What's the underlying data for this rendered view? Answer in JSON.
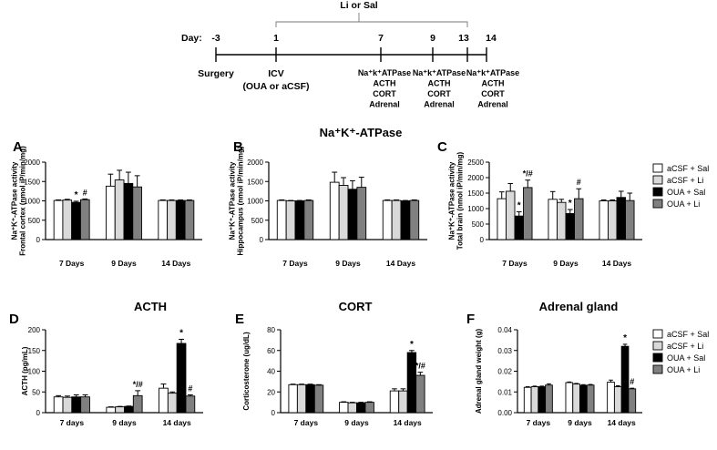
{
  "timeline": {
    "day_label": "Day:",
    "bracket_label": "Li or Sal",
    "days": [
      {
        "day": -3,
        "label": "-3",
        "below": [
          "Surgery"
        ]
      },
      {
        "day": 1,
        "label": "1",
        "below": [
          "ICV",
          "(OUA or aCSF)"
        ]
      },
      {
        "day": 7,
        "label": "7",
        "below": [
          "Na⁺k⁺ATPase",
          "ACTH",
          "CORT",
          "Adrenal"
        ]
      },
      {
        "day": 9,
        "label": "9",
        "below": [
          "Na⁺k⁺ATPase",
          "ACTH",
          "CORT",
          "Adrenal"
        ]
      },
      {
        "day": 13,
        "label": "13",
        "below": []
      },
      {
        "day": 14,
        "label": "14",
        "below": [
          "Na⁺k⁺ATPase",
          "ACTH",
          "CORT",
          "Adrenal"
        ]
      }
    ]
  },
  "section_titles": {
    "top": "Na⁺K⁺-ATPase"
  },
  "legends": [
    {
      "entries": [
        "aCSF + Sal",
        "aCSF + Li",
        "OUA + Sal",
        "OUA + Li"
      ]
    },
    {
      "entries": [
        "aCSF + Sal",
        "aCSF + Li",
        "OUA + Sal",
        "OUA + Li"
      ]
    }
  ],
  "colors": {
    "aCSF + Sal": "#ffffff",
    "aCSF + Li": "#d9d9d9",
    "OUA + Sal": "#000000",
    "OUA + Li": "#808080"
  },
  "chart_data": [
    {
      "id": "A",
      "letter": "A",
      "type": "bar",
      "title": "",
      "ylabel": "Na⁺K⁺-ATPase activity\nFrontal cortex (nmol iP/min/mg)",
      "ylim": [
        0,
        2000
      ],
      "yticks": [
        0,
        500,
        1000,
        1500,
        2000
      ],
      "categories": [
        "7 Days",
        "9 Days",
        "14 Days"
      ],
      "series": [
        {
          "name": "aCSF + Sal",
          "values": [
            1010,
            1380,
            1010
          ],
          "errors": [
            15,
            310,
            15
          ]
        },
        {
          "name": "aCSF + Li",
          "values": [
            1020,
            1540,
            1010
          ],
          "errors": [
            20,
            250,
            15
          ]
        },
        {
          "name": "OUA + Sal",
          "values": [
            960,
            1450,
            1010
          ],
          "errors": [
            30,
            290,
            15
          ]
        },
        {
          "name": "OUA + Li",
          "values": [
            1030,
            1360,
            1010
          ],
          "errors": [
            20,
            290,
            15
          ]
        }
      ],
      "annotations": [
        {
          "category": 0,
          "series": 2,
          "text": "*"
        },
        {
          "category": 0,
          "series": 3,
          "text": "#"
        }
      ]
    },
    {
      "id": "B",
      "letter": "B",
      "type": "bar",
      "title": "",
      "ylabel": "Na⁺K⁺-ATPase activity\nHippocampus (nmol iP/min/mg)",
      "ylim": [
        0,
        2000
      ],
      "yticks": [
        0,
        500,
        1000,
        1500,
        2000
      ],
      "categories": [
        "7 Days",
        "9 Days",
        "14 Days"
      ],
      "series": [
        {
          "name": "aCSF + Sal",
          "values": [
            1010,
            1480,
            1010
          ],
          "errors": [
            15,
            260,
            15
          ]
        },
        {
          "name": "aCSF + Li",
          "values": [
            1000,
            1400,
            1010
          ],
          "errors": [
            10,
            200,
            15
          ]
        },
        {
          "name": "OUA + Sal",
          "values": [
            1000,
            1300,
            1000
          ],
          "errors": [
            10,
            220,
            10
          ]
        },
        {
          "name": "OUA + Li",
          "values": [
            1010,
            1350,
            1010
          ],
          "errors": [
            15,
            260,
            15
          ]
        }
      ],
      "annotations": []
    },
    {
      "id": "C",
      "letter": "C",
      "type": "bar",
      "title": "",
      "ylabel": "Na⁺K⁺-ATPase activity\nTotal brain (nmol iP/min/mg)",
      "ylim": [
        0,
        2500
      ],
      "yticks": [
        0,
        500,
        1000,
        1500,
        2000,
        2500
      ],
      "categories": [
        "7 Days",
        "9 Days",
        "14 Days"
      ],
      "series": [
        {
          "name": "aCSF + Sal",
          "values": [
            1320,
            1300,
            1250
          ],
          "errors": [
            220,
            250,
            30
          ]
        },
        {
          "name": "aCSF + Li",
          "values": [
            1560,
            1200,
            1250
          ],
          "errors": [
            250,
            100,
            30
          ]
        },
        {
          "name": "OUA + Sal",
          "values": [
            760,
            840,
            1360
          ],
          "errors": [
            140,
            130,
            200
          ]
        },
        {
          "name": "OUA + Li",
          "values": [
            1680,
            1320,
            1260
          ],
          "errors": [
            240,
            320,
            240
          ]
        }
      ],
      "annotations": [
        {
          "category": 0,
          "series": 2,
          "text": "*"
        },
        {
          "category": 0,
          "series": 3,
          "text": "*/#"
        },
        {
          "category": 1,
          "series": 2,
          "text": "*"
        },
        {
          "category": 1,
          "series": 3,
          "text": "#"
        }
      ]
    },
    {
      "id": "D",
      "letter": "D",
      "type": "bar",
      "title": "ACTH",
      "ylabel": "ACTH (pg/mL)",
      "ylim": [
        0,
        200
      ],
      "yticks": [
        0,
        50,
        100,
        150,
        200
      ],
      "categories": [
        "7 days",
        "9 days",
        "14 days"
      ],
      "series": [
        {
          "name": "aCSF + Sal",
          "values": [
            38,
            13,
            59
          ],
          "errors": [
            3,
            1,
            10
          ]
        },
        {
          "name": "aCSF + Li",
          "values": [
            37,
            14,
            47
          ],
          "errors": [
            3,
            1,
            3
          ]
        },
        {
          "name": "OUA + Sal",
          "values": [
            38,
            15,
            167
          ],
          "errors": [
            5,
            1,
            10
          ]
        },
        {
          "name": "OUA + Li",
          "values": [
            38,
            41,
            40
          ],
          "errors": [
            5,
            12,
            3
          ]
        }
      ],
      "annotations": [
        {
          "category": 1,
          "series": 3,
          "text": "*/#"
        },
        {
          "category": 2,
          "series": 2,
          "text": "*"
        },
        {
          "category": 2,
          "series": 3,
          "text": "#"
        }
      ]
    },
    {
      "id": "E",
      "letter": "E",
      "type": "bar",
      "title": "CORT",
      "ylabel": "Corticosterone (ug/dL)",
      "ylim": [
        0,
        80
      ],
      "yticks": [
        0,
        20,
        40,
        60,
        80
      ],
      "categories": [
        "7 days",
        "9 days",
        "14 days"
      ],
      "series": [
        {
          "name": "aCSF + Sal",
          "values": [
            27,
            10,
            21
          ],
          "errors": [
            0.5,
            0.5,
            2
          ]
        },
        {
          "name": "aCSF + Li",
          "values": [
            27,
            9.5,
            21
          ],
          "errors": [
            0.5,
            0.5,
            2
          ]
        },
        {
          "name": "OUA + Sal",
          "values": [
            27,
            9.5,
            58
          ],
          "errors": [
            0.5,
            0.5,
            2
          ]
        },
        {
          "name": "OUA + Li",
          "values": [
            26.5,
            10,
            36
          ],
          "errors": [
            0.5,
            0.5,
            3
          ]
        }
      ],
      "annotations": [
        {
          "category": 2,
          "series": 2,
          "text": "*"
        },
        {
          "category": 2,
          "series": 3,
          "text": "*/#"
        }
      ]
    },
    {
      "id": "F",
      "letter": "F",
      "type": "bar",
      "title": "Adrenal gland",
      "ylabel": "Adrenal gland weight (g)",
      "ylim": [
        0,
        0.04
      ],
      "yticks": [
        0.0,
        0.01,
        0.02,
        0.03,
        0.04
      ],
      "ytick_labels": [
        "0.00",
        "0.01",
        "0.02",
        "0.03",
        "0.04"
      ],
      "categories": [
        "7 days",
        "9 days",
        "14 days"
      ],
      "series": [
        {
          "name": "aCSF + Sal",
          "values": [
            0.0122,
            0.0145,
            0.0147
          ],
          "errors": [
            0.0003,
            0.0003,
            0.001
          ]
        },
        {
          "name": "aCSF + Li",
          "values": [
            0.0125,
            0.0138,
            0.0125
          ],
          "errors": [
            0.0003,
            0.0003,
            0.0005
          ]
        },
        {
          "name": "OUA + Sal",
          "values": [
            0.0125,
            0.0132,
            0.032
          ],
          "errors": [
            0.0003,
            0.0003,
            0.001
          ]
        },
        {
          "name": "OUA + Li",
          "values": [
            0.0133,
            0.0133,
            0.0115
          ],
          "errors": [
            0.0006,
            0.0003,
            0.0003
          ]
        }
      ],
      "annotations": [
        {
          "category": 2,
          "series": 2,
          "text": "*"
        },
        {
          "category": 2,
          "series": 3,
          "text": "#"
        }
      ]
    }
  ]
}
